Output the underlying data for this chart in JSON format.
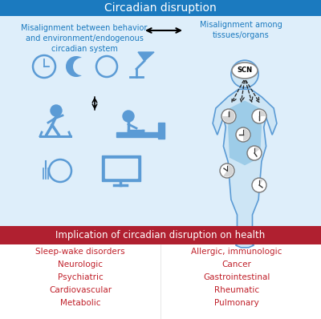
{
  "title_top": "Circadian disruption",
  "title_top_bg": "#1b7abf",
  "title_top_color": "white",
  "title_bottom": "Implication of circadian disruption on health",
  "title_bottom_bg": "#b02030",
  "title_bottom_color": "white",
  "left_header": "Misalignment between behavior\nand environment/endogenous\ncircadian system",
  "right_header": "Misalignment among\ntissues/organs",
  "header_color": "#1b7abf",
  "left_diseases": [
    "Sleep-wake disorders",
    "Neurologic",
    "Psychiatric",
    "Cardiovascular",
    "Metabolic"
  ],
  "right_diseases": [
    "Allergic, immunologic",
    "Cancer",
    "Gastrointestinal",
    "Rheumatic",
    "Pulmonary"
  ],
  "disease_color": "#c0202a",
  "bg_top": "#deeefa",
  "bg_bottom": "white",
  "icon_color": "#5b9bd5",
  "body_fill": "#cde5f5",
  "body_edge": "#5b9bd5",
  "organ_fill": "#9dcce8",
  "clock_face": "white",
  "clock_edge": "#777777",
  "scn_fill": "white",
  "scn_edge": "#888888",
  "arrow_color": "#222222",
  "figure_bg": "white"
}
